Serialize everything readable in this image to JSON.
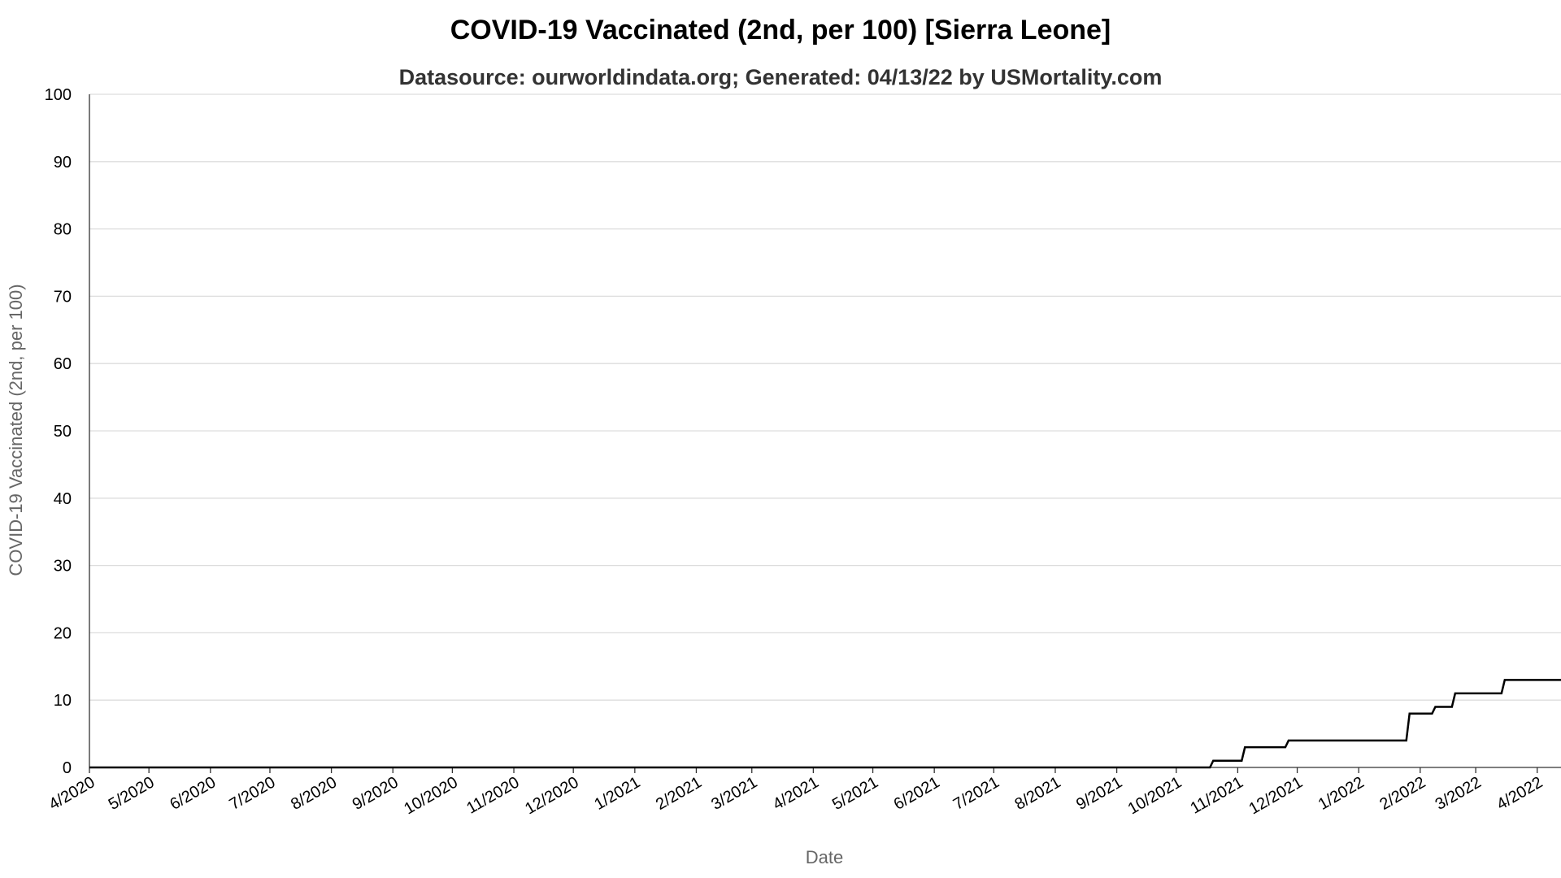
{
  "chart_data": {
    "type": "line",
    "title": "COVID-19 Vaccinated (2nd, per 100) [Sierra Leone]",
    "subtitle": "Datasource: ourworldindata.org; Generated: 04/13/22 by USMortality.com",
    "xlabel": "Date",
    "ylabel": "COVID-19 Vaccinated (2nd, per 100)",
    "ylim": [
      0,
      100
    ],
    "yticks": [
      0,
      10,
      20,
      30,
      40,
      50,
      60,
      70,
      80,
      90,
      100
    ],
    "xlim": [
      "2020-04-01",
      "2022-04-13"
    ],
    "xticks": [
      {
        "label": "4/2020",
        "date": "2020-04-01"
      },
      {
        "label": "5/2020",
        "date": "2020-05-01"
      },
      {
        "label": "6/2020",
        "date": "2020-06-01"
      },
      {
        "label": "7/2020",
        "date": "2020-07-01"
      },
      {
        "label": "8/2020",
        "date": "2020-08-01"
      },
      {
        "label": "9/2020",
        "date": "2020-09-01"
      },
      {
        "label": "10/2020",
        "date": "2020-10-01"
      },
      {
        "label": "11/2020",
        "date": "2020-11-01"
      },
      {
        "label": "12/2020",
        "date": "2020-12-01"
      },
      {
        "label": "1/2021",
        "date": "2021-01-01"
      },
      {
        "label": "2/2021",
        "date": "2021-02-01"
      },
      {
        "label": "3/2021",
        "date": "2021-03-01"
      },
      {
        "label": "4/2021",
        "date": "2021-04-01"
      },
      {
        "label": "5/2021",
        "date": "2021-05-01"
      },
      {
        "label": "6/2021",
        "date": "2021-06-01"
      },
      {
        "label": "7/2021",
        "date": "2021-07-01"
      },
      {
        "label": "8/2021",
        "date": "2021-08-01"
      },
      {
        "label": "9/2021",
        "date": "2021-09-01"
      },
      {
        "label": "10/2021",
        "date": "2021-10-01"
      },
      {
        "label": "11/2021",
        "date": "2021-11-01"
      },
      {
        "label": "12/2021",
        "date": "2021-12-01"
      },
      {
        "label": "1/2022",
        "date": "2022-01-01"
      },
      {
        "label": "2/2022",
        "date": "2022-02-01"
      },
      {
        "label": "3/2022",
        "date": "2022-03-01"
      },
      {
        "label": "4/2022",
        "date": "2022-04-01"
      }
    ],
    "grid": true,
    "legend": "none",
    "series": [
      {
        "color": "#000000",
        "step": true,
        "points": [
          {
            "x": "2020-04-01",
            "y": 0
          },
          {
            "x": "2021-10-18",
            "y": 1
          },
          {
            "x": "2021-11-03",
            "y": 3
          },
          {
            "x": "2021-11-25",
            "y": 4
          },
          {
            "x": "2022-01-25",
            "y": 8
          },
          {
            "x": "2022-02-07",
            "y": 9
          },
          {
            "x": "2022-02-17",
            "y": 11
          },
          {
            "x": "2022-03-14",
            "y": 13
          },
          {
            "x": "2022-04-13",
            "y": 13
          }
        ]
      }
    ]
  }
}
